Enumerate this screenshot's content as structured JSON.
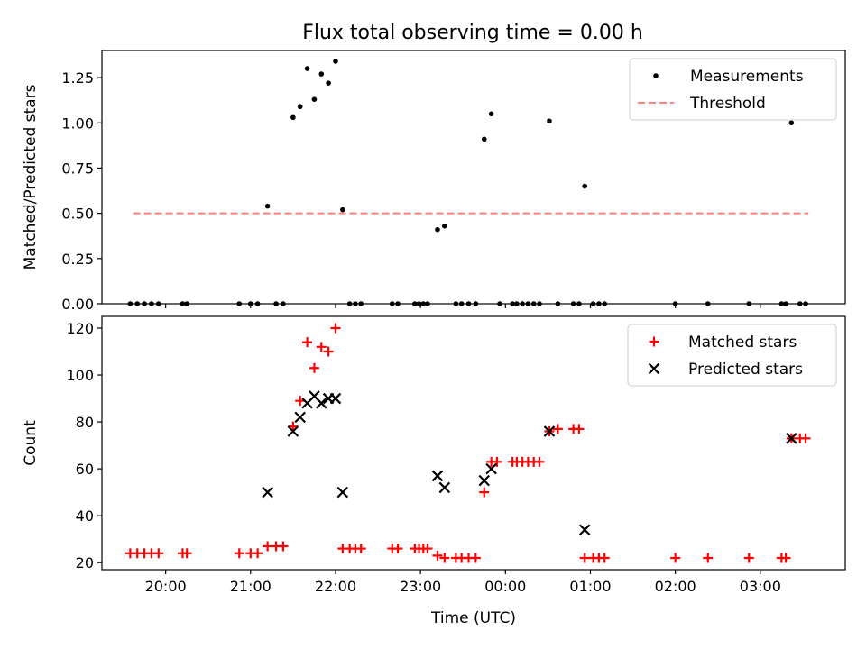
{
  "figure": {
    "title": "Flux total observing time = 0.00 h"
  },
  "chart_data": [
    {
      "type": "scatter",
      "panel": "top",
      "title": "Flux total observing time = 0.00 h",
      "xlabel": "",
      "ylabel": "Matched/Predicted stars",
      "xlim": [
        "19:15",
        "04:00"
      ],
      "ylim": [
        0,
        1.4
      ],
      "yticks": [
        0.0,
        0.25,
        0.5,
        0.75,
        1.0,
        1.25
      ],
      "ytick_labels": [
        "0.00",
        "0.25",
        "0.50",
        "0.75",
        "1.00",
        "1.25"
      ],
      "legend_position": "top-right",
      "series": [
        {
          "name": "Measurements",
          "kind": "scatter",
          "marker": "dot",
          "color": "#000000",
          "points": [
            [
              "19:35",
              0
            ],
            [
              "19:40",
              0
            ],
            [
              "19:45",
              0
            ],
            [
              "19:50",
              0
            ],
            [
              "19:55",
              0
            ],
            [
              "20:12",
              0
            ],
            [
              "20:15",
              0
            ],
            [
              "20:52",
              0
            ],
            [
              "21:00",
              0
            ],
            [
              "21:05",
              0
            ],
            [
              "21:12",
              0.54
            ],
            [
              "21:18",
              0
            ],
            [
              "21:23",
              0
            ],
            [
              "21:30",
              1.03
            ],
            [
              "21:35",
              1.09
            ],
            [
              "21:40",
              1.3
            ],
            [
              "21:45",
              1.13
            ],
            [
              "21:50",
              1.27
            ],
            [
              "21:55",
              1.22
            ],
            [
              "22:00",
              1.34
            ],
            [
              "22:05",
              0.52
            ],
            [
              "22:10",
              0
            ],
            [
              "22:14",
              0
            ],
            [
              "22:18",
              0
            ],
            [
              "22:40",
              0
            ],
            [
              "22:44",
              0
            ],
            [
              "22:56",
              0
            ],
            [
              "22:59",
              0
            ],
            [
              "23:02",
              0
            ],
            [
              "23:05",
              0
            ],
            [
              "23:12",
              0.41
            ],
            [
              "23:17",
              0.43
            ],
            [
              "23:25",
              0
            ],
            [
              "23:29",
              0
            ],
            [
              "23:34",
              0
            ],
            [
              "23:39",
              0
            ],
            [
              "23:45",
              0.91
            ],
            [
              "23:50",
              1.05
            ],
            [
              "23:56",
              0
            ],
            [
              "00:05",
              0
            ],
            [
              "00:08",
              0
            ],
            [
              "00:12",
              0
            ],
            [
              "00:16",
              0
            ],
            [
              "00:20",
              0
            ],
            [
              "00:24",
              0
            ],
            [
              "00:31",
              1.01
            ],
            [
              "00:37",
              0
            ],
            [
              "00:48",
              0
            ],
            [
              "00:52",
              0
            ],
            [
              "00:56",
              0.65
            ],
            [
              "01:02",
              0
            ],
            [
              "01:06",
              0
            ],
            [
              "01:10",
              0
            ],
            [
              "02:00",
              0
            ],
            [
              "02:23",
              0
            ],
            [
              "02:52",
              0
            ],
            [
              "03:15",
              0
            ],
            [
              "03:18",
              0
            ],
            [
              "03:22",
              1.0
            ],
            [
              "03:28",
              0
            ],
            [
              "03:32",
              0
            ]
          ]
        },
        {
          "name": "Threshold",
          "kind": "line",
          "style": "dashed",
          "color": "#ff7f7f",
          "points": [
            [
              "19:37",
              0.5
            ],
            [
              "03:34",
              0.5
            ]
          ]
        }
      ]
    },
    {
      "type": "scatter",
      "panel": "bottom",
      "xlabel": "Time (UTC)",
      "ylabel": "Count",
      "xlim": [
        "19:15",
        "04:00"
      ],
      "ylim": [
        17,
        125
      ],
      "yticks": [
        20,
        40,
        60,
        80,
        100,
        120
      ],
      "xticks": [
        "20:00",
        "21:00",
        "22:00",
        "23:00",
        "00:00",
        "01:00",
        "02:00",
        "03:00"
      ],
      "legend_position": "top-right",
      "series": [
        {
          "name": "Matched stars",
          "marker": "plus",
          "color": "#ff0000",
          "points": [
            [
              "19:35",
              24
            ],
            [
              "19:40",
              24
            ],
            [
              "19:45",
              24
            ],
            [
              "19:50",
              24
            ],
            [
              "19:55",
              24
            ],
            [
              "20:12",
              24
            ],
            [
              "20:15",
              24
            ],
            [
              "20:52",
              24
            ],
            [
              "21:00",
              24
            ],
            [
              "21:05",
              24
            ],
            [
              "21:12",
              27
            ],
            [
              "21:18",
              27
            ],
            [
              "21:23",
              27
            ],
            [
              "21:30",
              78
            ],
            [
              "21:35",
              89
            ],
            [
              "21:40",
              114
            ],
            [
              "21:45",
              103
            ],
            [
              "21:50",
              112
            ],
            [
              "21:55",
              110
            ],
            [
              "22:00",
              120
            ],
            [
              "22:05",
              26
            ],
            [
              "22:10",
              26
            ],
            [
              "22:14",
              26
            ],
            [
              "22:18",
              26
            ],
            [
              "22:40",
              26
            ],
            [
              "22:44",
              26
            ],
            [
              "22:56",
              26
            ],
            [
              "22:59",
              26
            ],
            [
              "23:02",
              26
            ],
            [
              "23:05",
              26
            ],
            [
              "23:12",
              23
            ],
            [
              "23:17",
              22
            ],
            [
              "23:25",
              22
            ],
            [
              "23:29",
              22
            ],
            [
              "23:34",
              22
            ],
            [
              "23:39",
              22
            ],
            [
              "23:45",
              50
            ],
            [
              "23:50",
              63
            ],
            [
              "23:54",
              63
            ],
            [
              "00:05",
              63
            ],
            [
              "00:08",
              63
            ],
            [
              "00:12",
              63
            ],
            [
              "00:16",
              63
            ],
            [
              "00:20",
              63
            ],
            [
              "00:24",
              63
            ],
            [
              "00:31",
              76
            ],
            [
              "00:37",
              77
            ],
            [
              "00:48",
              77
            ],
            [
              "00:52",
              77
            ],
            [
              "00:56",
              22
            ],
            [
              "01:02",
              22
            ],
            [
              "01:06",
              22
            ],
            [
              "01:10",
              22
            ],
            [
              "02:00",
              22
            ],
            [
              "02:23",
              22
            ],
            [
              "02:52",
              22
            ],
            [
              "03:15",
              22
            ],
            [
              "03:18",
              22
            ],
            [
              "03:22",
              73
            ],
            [
              "03:28",
              73
            ],
            [
              "03:32",
              73
            ]
          ]
        },
        {
          "name": "Predicted stars",
          "marker": "x",
          "color": "#000000",
          "points": [
            [
              "21:12",
              50
            ],
            [
              "21:30",
              76
            ],
            [
              "21:35",
              82
            ],
            [
              "21:40",
              88
            ],
            [
              "21:45",
              91
            ],
            [
              "21:50",
              88
            ],
            [
              "21:55",
              90
            ],
            [
              "22:00",
              90
            ],
            [
              "22:05",
              50
            ],
            [
              "23:12",
              57
            ],
            [
              "23:17",
              52
            ],
            [
              "23:45",
              55
            ],
            [
              "23:50",
              60
            ],
            [
              "00:31",
              76
            ],
            [
              "00:56",
              34
            ],
            [
              "03:22",
              73
            ]
          ]
        }
      ]
    }
  ]
}
